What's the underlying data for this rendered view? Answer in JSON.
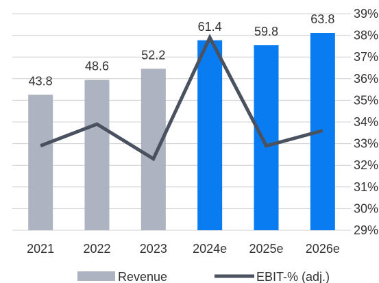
{
  "chart_data": {
    "type": "bar",
    "title": "",
    "xlabel": "",
    "ylabel": "",
    "categories": [
      "2021",
      "2022",
      "2023",
      "2024e",
      "2025e",
      "2026e"
    ],
    "series": [
      {
        "name": "Revenue",
        "type": "bar",
        "axis": "left",
        "values": [
          43.8,
          48.6,
          52.2,
          61.4,
          59.8,
          63.8
        ],
        "data_labels": [
          "43.8",
          "48.6",
          "52.2",
          "61.4",
          "59.8",
          "63.8"
        ],
        "colors": [
          "#aeb3c2",
          "#aeb3c2",
          "#aeb3c2",
          "#0a7cf2",
          "#0a7cf2",
          "#0a7cf2"
        ]
      },
      {
        "name": "EBIT-% (adj.)",
        "type": "line",
        "axis": "right",
        "values": [
          32.9,
          33.9,
          32.3,
          37.9,
          32.9,
          33.6
        ],
        "color": "#4a5260"
      }
    ],
    "y_left_range": [
      0,
      70
    ],
    "y_right_range": [
      29,
      39
    ],
    "y_right_ticks": [
      "29%",
      "30%",
      "31%",
      "32%",
      "33%",
      "34%",
      "35%",
      "36%",
      "37%",
      "38%",
      "39%"
    ],
    "grid": true,
    "legend": {
      "position": "bottom",
      "items": [
        {
          "label": "Revenue",
          "swatch": "bar",
          "color": "#aeb3c2"
        },
        {
          "label": "EBIT-% (adj.)",
          "swatch": "line",
          "color": "#4a5260"
        }
      ]
    }
  }
}
